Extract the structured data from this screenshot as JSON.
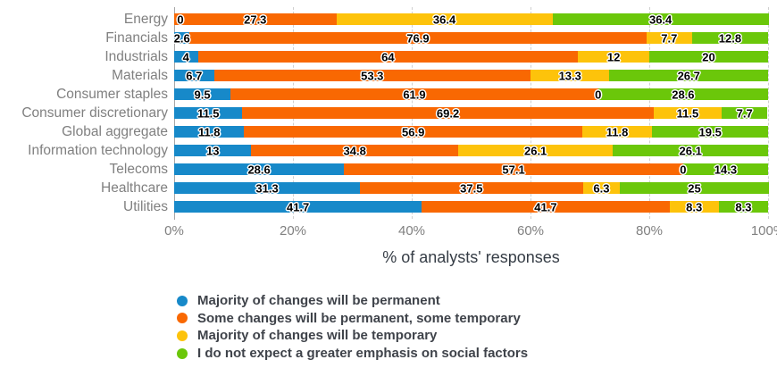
{
  "chart_data": {
    "type": "bar",
    "orientation": "horizontal",
    "stacked": true,
    "title": "",
    "xlabel": "% of analysts' responses",
    "ylabel": "",
    "xlim": [
      0,
      100
    ],
    "x_ticks": [
      "0%",
      "20%",
      "40%",
      "60%",
      "80%",
      "100%"
    ],
    "x_tick_values": [
      0,
      20,
      40,
      60,
      80,
      100
    ],
    "grid": "dashed-vertical",
    "legend_position": "bottom-left",
    "categories": [
      "Energy",
      "Financials",
      "Industrials",
      "Materials",
      "Consumer staples",
      "Consumer discretionary",
      "Global aggregate",
      "Information technology",
      "Telecoms",
      "Healthcare",
      "Utilities"
    ],
    "series": [
      {
        "name": "Majority of changes will be permanent",
        "color": "#1789c9",
        "values": [
          0,
          2.6,
          4,
          6.7,
          9.5,
          11.5,
          11.8,
          13,
          28.6,
          31.3,
          41.7
        ]
      },
      {
        "name": "Some changes will be permanent, some temporary",
        "color": "#f96802",
        "values": [
          27.3,
          76.9,
          64,
          53.3,
          61.9,
          69.2,
          56.9,
          34.8,
          57.1,
          37.5,
          41.7
        ]
      },
      {
        "name": "Majority of changes will be temporary",
        "color": "#fdc30b",
        "values": [
          36.4,
          7.7,
          12,
          13.3,
          0,
          11.5,
          11.8,
          26.1,
          0,
          6.3,
          8.3
        ]
      },
      {
        "name": "I do not expect a greater emphasis on social factors",
        "color": "#6bc70a",
        "values": [
          36.4,
          12.8,
          20,
          26.7,
          28.6,
          7.7,
          19.5,
          26.1,
          14.3,
          25,
          8.3
        ]
      }
    ],
    "colors": {
      "gridline": "#cfcfcf",
      "axis_line": "#a6a6a6",
      "tick_label": "#808080",
      "category_label": "#808080",
      "value_label": "#000000",
      "value_label_outline": "#ffffff"
    }
  }
}
